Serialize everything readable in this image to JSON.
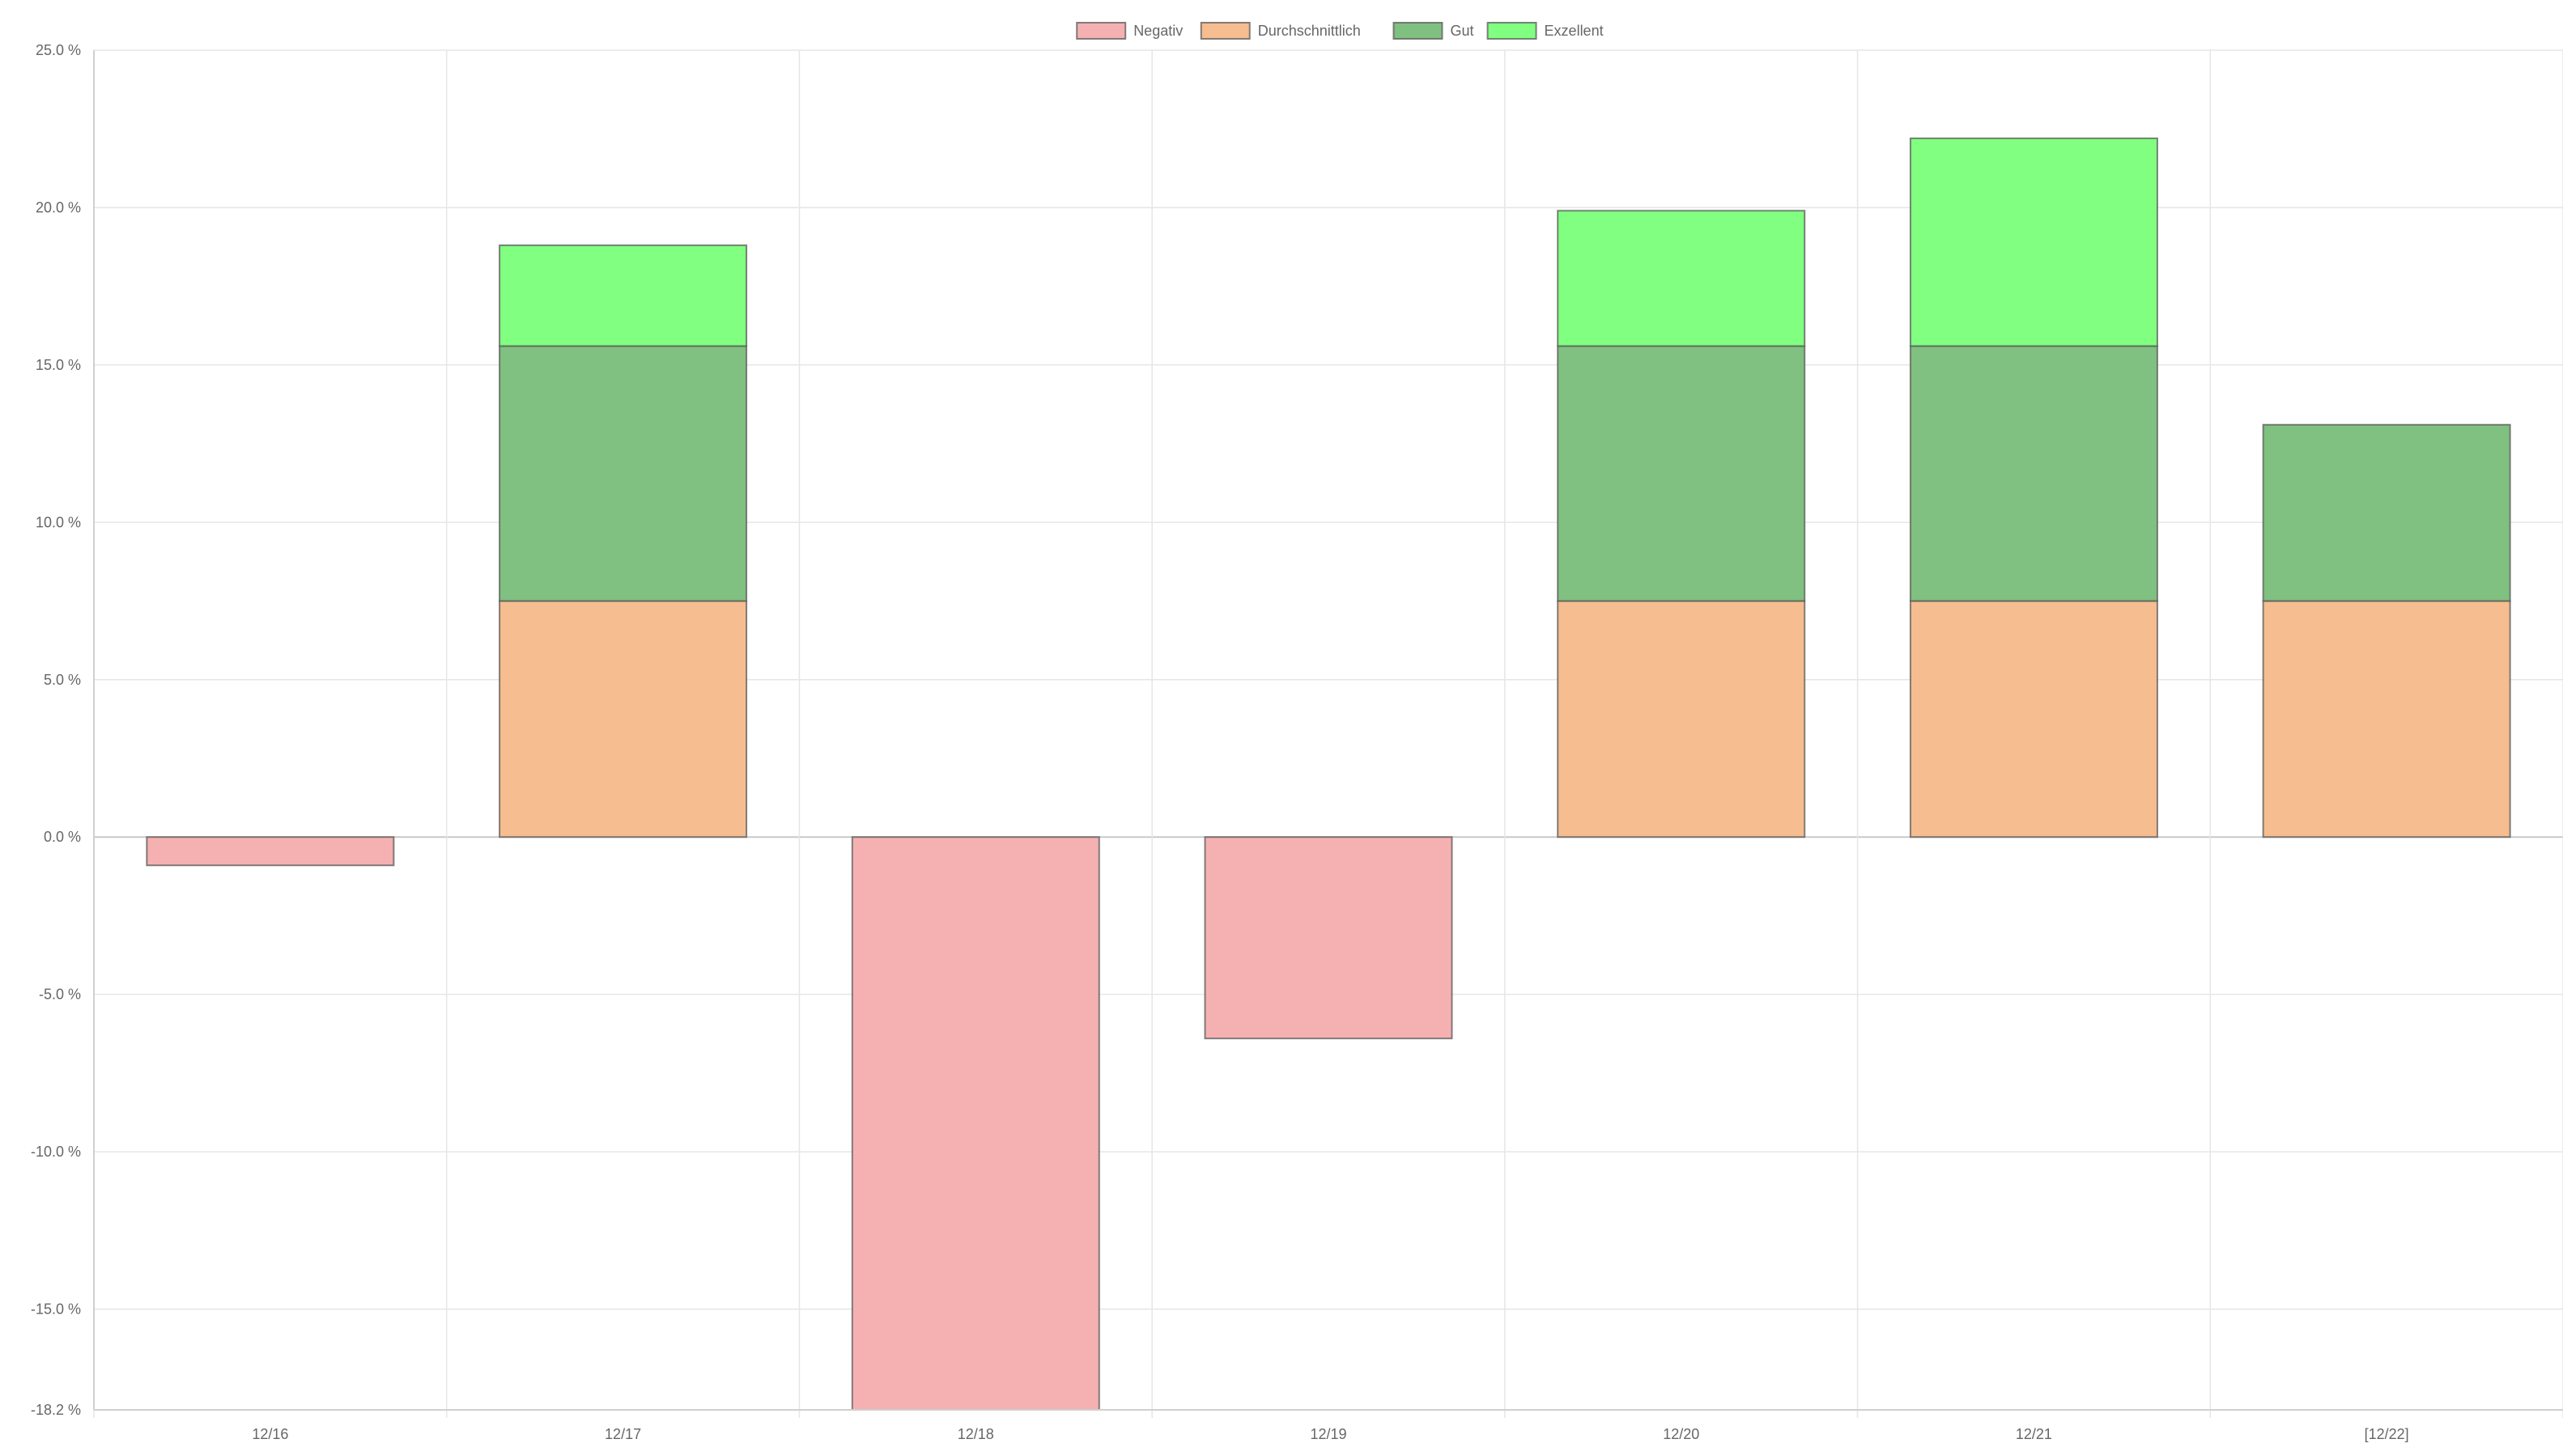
{
  "chart_data": {
    "type": "bar",
    "stacked": true,
    "categories": [
      "12/16",
      "12/17",
      "12/18",
      "12/19",
      "12/20",
      "12/21",
      "[12/22]"
    ],
    "series": [
      {
        "name": "Negativ",
        "color": "#F5B1B1",
        "values": [
          -0.9,
          0,
          -18.2,
          -6.4,
          0,
          0,
          0
        ]
      },
      {
        "name": "Durchschnittlich",
        "color": "#F5BD90",
        "values": [
          0,
          7.5,
          0,
          0,
          7.5,
          7.5,
          7.5
        ]
      },
      {
        "name": "Gut",
        "color": "#80C080",
        "values": [
          0,
          8.1,
          0,
          0,
          8.1,
          8.1,
          5.6
        ]
      },
      {
        "name": "Exzellent",
        "color": "#80FF80",
        "values": [
          0,
          3.2,
          0,
          0,
          4.3,
          6.6,
          0
        ]
      }
    ],
    "ylim": [
      -18.2,
      25.0
    ],
    "yticks": [
      "25.0 %",
      "20.0 %",
      "15.0 %",
      "10.0 %",
      "5.0 %",
      "0.0 %",
      "-5.0 %",
      "-10.0 %",
      "-15.0 %",
      "-18.2 %"
    ],
    "ytick_values": [
      25,
      20,
      15,
      10,
      5,
      0,
      -5,
      -10,
      -15,
      -18.2
    ],
    "legend_position": "top-center",
    "grid": true,
    "title": "",
    "xlabel": "",
    "ylabel": ""
  }
}
